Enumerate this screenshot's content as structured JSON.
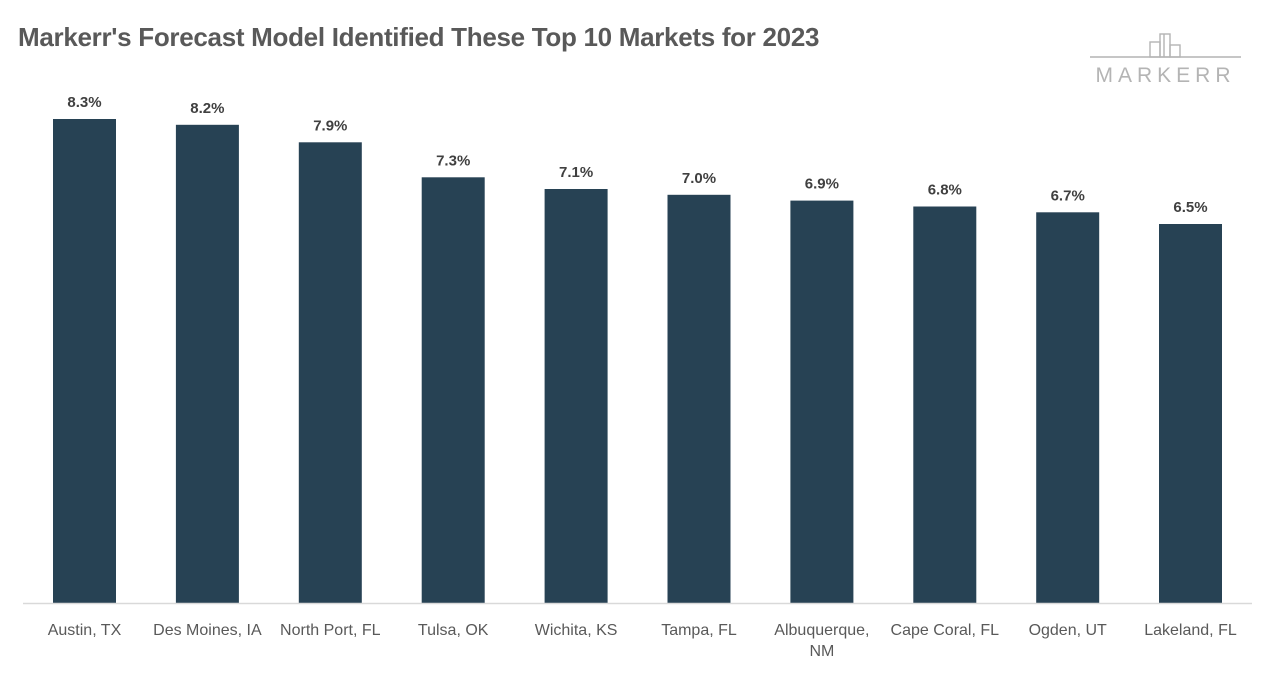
{
  "colors": {
    "bar": "#274254",
    "axis": "#d9d9d9",
    "title": "#595959",
    "logo": "#b4b4b4"
  },
  "logo": {
    "text": "MARKERR",
    "icon": "building-skyline-icon"
  },
  "chart_data": {
    "type": "bar",
    "title": "Markerr's Forecast Model Identified These Top 10 Markets for 2023",
    "xlabel": "",
    "ylabel": "",
    "categories": [
      "Austin, TX",
      "Des Moines, IA",
      "North Port, FL",
      "Tulsa, OK",
      "Wichita, KS",
      "Tampa, FL",
      "Albuquerque, NM",
      "Cape Coral, FL",
      "Ogden, UT",
      "Lakeland, FL"
    ],
    "values": [
      8.3,
      8.2,
      7.9,
      7.3,
      7.1,
      7.0,
      6.9,
      6.8,
      6.7,
      6.5
    ],
    "value_labels": [
      "8.3%",
      "8.2%",
      "7.9%",
      "7.3%",
      "7.1%",
      "7.0%",
      "6.9%",
      "6.8%",
      "6.7%",
      "6.5%"
    ],
    "ylim": [
      0,
      8.3
    ],
    "grid": false,
    "legend": "none"
  }
}
